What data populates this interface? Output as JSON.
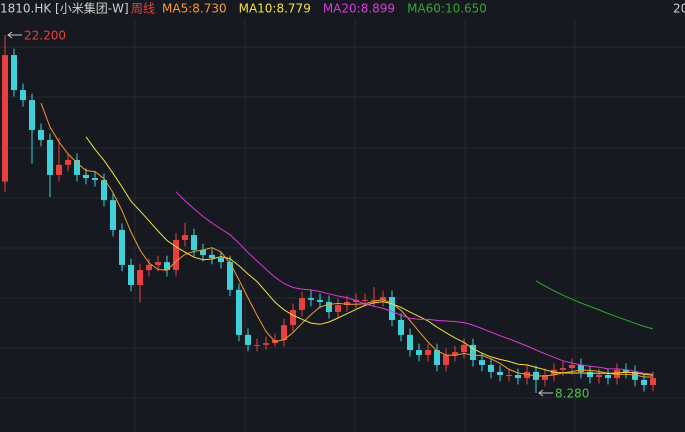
{
  "chart_data": {
    "type": "candlestick",
    "symbol": "1810.HK [小米集团-W]",
    "period": "周线",
    "edge_label": "20",
    "up_color": "#e8403f",
    "down_color": "#3fd0d8",
    "moving_averages": [
      {
        "label": "MA5:8.730",
        "period": 5,
        "color": "#f29a2e"
      },
      {
        "label": "MA10:8.779",
        "period": 10,
        "color": "#f2e13a"
      },
      {
        "label": "MA20:8.899",
        "period": 20,
        "color": "#d93ad9"
      },
      {
        "label": "MA60:10.650",
        "period": 60,
        "color": "#2ea82e"
      }
    ],
    "annotations": [
      {
        "text": "22.200",
        "at": "high",
        "color": "#e8403f"
      },
      {
        "text": "8.280",
        "at": "low",
        "color": "#4cc04c"
      }
    ],
    "open": [
      16.5,
      21.42,
      20.06,
      19.67,
      18.51,
      18.12,
      16.76,
      17.15,
      17.34,
      16.76,
      16.64,
      16.56,
      15.78,
      14.62,
      13.26,
      12.48,
      13.06,
      13.26,
      13.37,
      13.06,
      14.23,
      14.42,
      13.84,
      13.65,
      13.53,
      13.37,
      12.29,
      10.54,
      10.15,
      10.15,
      10.22,
      10.34,
      10.92,
      11.51,
      11.97,
      11.9,
      11.82,
      11.43,
      11.7,
      11.82,
      11.9,
      11.9,
      11.9,
      12.01,
      11.12,
      10.54,
      9.95,
      9.76,
      9.95,
      9.37,
      9.76,
      9.87,
      10.15,
      9.56,
      9.37,
      9.1,
      8.98,
      8.98,
      8.86,
      9.1,
      8.79,
      8.98,
      9.18,
      9.25,
      9.37,
      9.1,
      8.9,
      8.98,
      8.86,
      9.18,
      9.1,
      8.79,
      8.59
    ],
    "close": [
      21.42,
      20.06,
      19.67,
      18.51,
      18.12,
      16.76,
      17.15,
      17.34,
      16.76,
      16.64,
      16.56,
      15.78,
      14.62,
      13.26,
      12.48,
      13.06,
      13.26,
      13.37,
      13.06,
      14.23,
      14.42,
      13.84,
      13.65,
      13.53,
      13.37,
      12.29,
      10.54,
      10.15,
      10.15,
      10.22,
      10.34,
      10.92,
      11.51,
      11.97,
      11.9,
      11.82,
      11.43,
      11.7,
      11.82,
      11.9,
      11.9,
      11.9,
      12.01,
      11.12,
      10.54,
      9.95,
      9.76,
      9.95,
      9.37,
      9.76,
      9.87,
      10.15,
      9.56,
      9.37,
      9.1,
      8.98,
      8.98,
      8.86,
      9.1,
      8.79,
      8.98,
      9.18,
      9.25,
      9.37,
      9.1,
      8.9,
      8.98,
      8.86,
      9.18,
      9.1,
      8.79,
      8.59,
      8.86
    ],
    "high": [
      22.2,
      21.67,
      20.31,
      19.92,
      18.76,
      18.37,
      18.2,
      17.59,
      17.59,
      17.01,
      16.89,
      16.81,
      16.03,
      14.87,
      13.51,
      13.31,
      13.51,
      13.62,
      13.62,
      14.48,
      14.9,
      14.67,
      14.09,
      13.9,
      13.78,
      13.62,
      12.54,
      10.79,
      10.4,
      10.47,
      10.59,
      11.17,
      11.76,
      12.22,
      12.3,
      12.15,
      12.07,
      11.95,
      12.07,
      12.15,
      12.15,
      12.4,
      12.26,
      12.26,
      11.37,
      10.79,
      10.2,
      10.2,
      10.2,
      10.01,
      10.12,
      10.4,
      10.4,
      9.81,
      9.62,
      9.35,
      9.23,
      9.23,
      9.35,
      9.35,
      9.23,
      9.43,
      9.5,
      9.62,
      9.62,
      9.35,
      9.23,
      9.23,
      9.43,
      9.43,
      9.35,
      9.04,
      9.11
    ],
    "low": [
      16.1,
      19.81,
      19.42,
      17.2,
      17.87,
      15.9,
      16.51,
      16.9,
      16.51,
      16.39,
      16.31,
      15.53,
      14.37,
      13.01,
      12.23,
      11.8,
      12.81,
      13.01,
      12.81,
      12.81,
      13.98,
      13.59,
      13.4,
      13.28,
      13.12,
      12.04,
      10.29,
      9.9,
      9.9,
      9.97,
      10.09,
      10.09,
      10.67,
      11.26,
      11.65,
      11.57,
      11.18,
      11.18,
      11.45,
      11.57,
      11.65,
      11.65,
      11.65,
      10.87,
      10.29,
      9.7,
      9.51,
      9.51,
      9.12,
      9.12,
      9.51,
      9.62,
      9.31,
      9.12,
      8.85,
      8.73,
      8.73,
      8.61,
      8.61,
      8.28,
      8.54,
      8.73,
      8.93,
      9.0,
      8.85,
      8.65,
      8.65,
      8.61,
      8.61,
      8.85,
      8.54,
      8.34,
      8.34
    ]
  }
}
